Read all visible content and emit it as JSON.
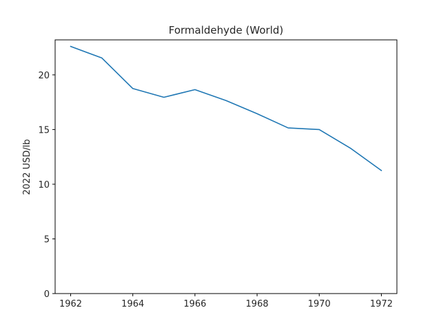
{
  "chart_data": {
    "type": "line",
    "title": "Formaldehyde (World)",
    "xlabel": "",
    "ylabel": "2022 USD/lb",
    "xlim": [
      1961.5,
      1972.5
    ],
    "ylim": [
      0,
      23.2
    ],
    "xticks": [
      1962,
      1964,
      1966,
      1968,
      1970,
      1972
    ],
    "yticks": [
      0,
      5,
      10,
      15,
      20
    ],
    "grid": false,
    "series": [
      {
        "color": "#1f77b4",
        "x": [
          1962,
          1963,
          1964,
          1965,
          1966,
          1967,
          1968,
          1969,
          1970,
          1971,
          1972
        ],
        "y": [
          22.6,
          21.55,
          18.75,
          17.95,
          18.65,
          17.65,
          16.45,
          15.15,
          15.0,
          13.3,
          11.25
        ]
      }
    ]
  }
}
